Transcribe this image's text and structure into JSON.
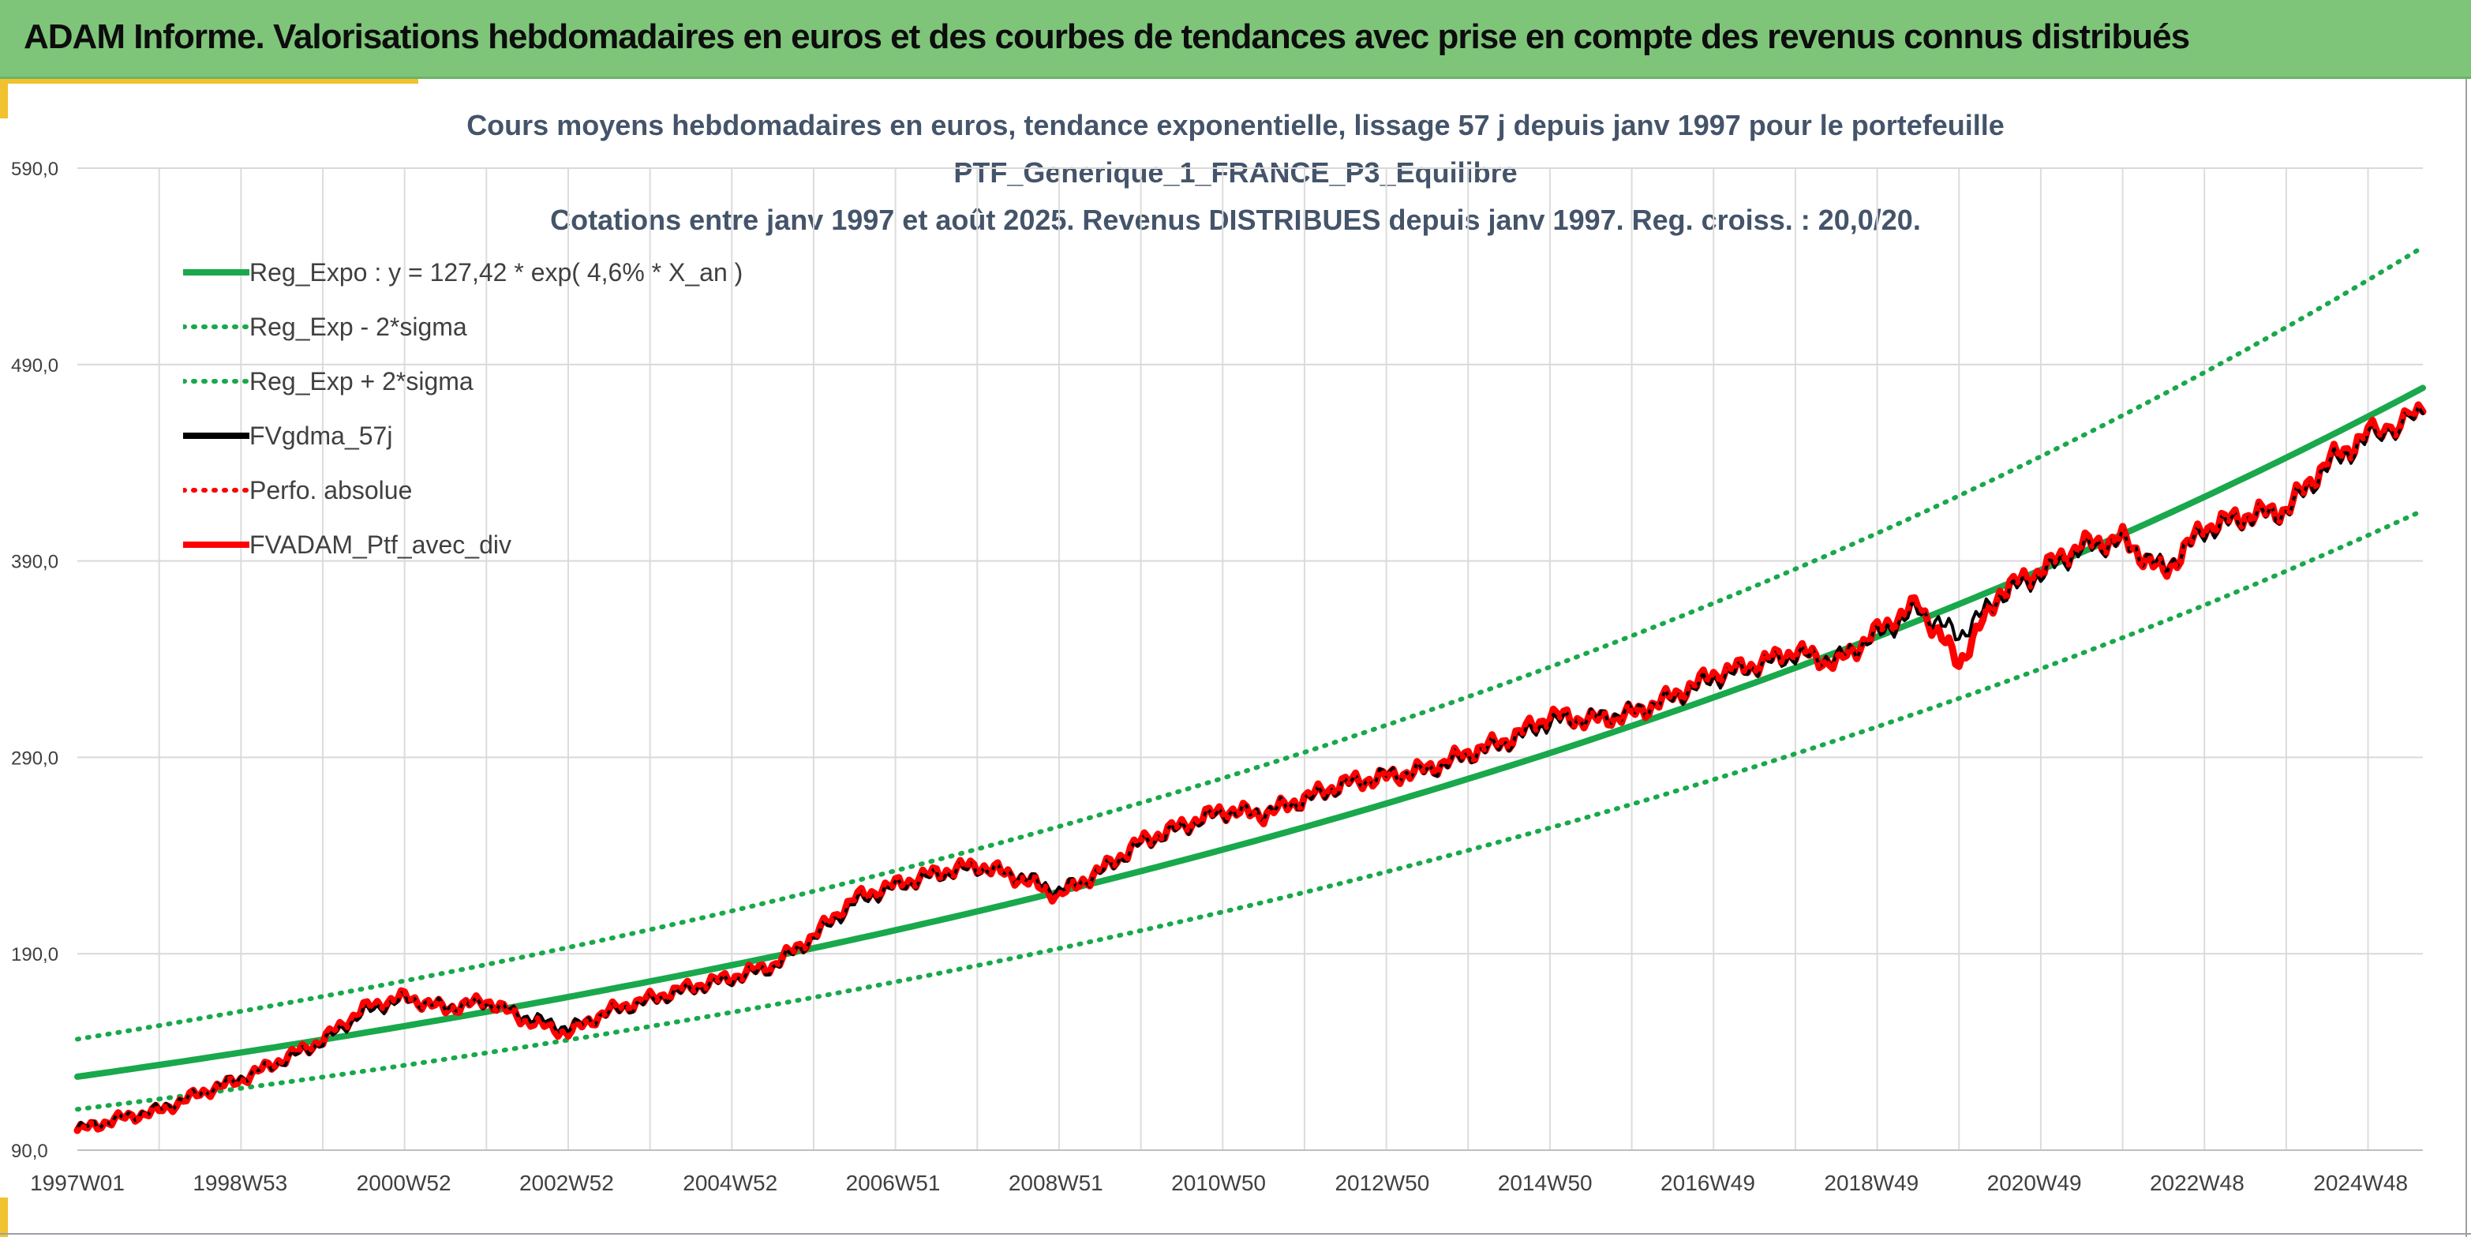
{
  "header": {
    "title": "ADAM Informe. Valorisations hebdomadaires en euros et des courbes de tendances avec prise en compte des revenus connus distribués"
  },
  "colors": {
    "header_bg": "#7ec57a",
    "accent": "#f2c12e",
    "trend_green": "#19a84b",
    "fv_black": "#000000",
    "ptf_red": "#ff0000"
  },
  "chart_data": {
    "type": "line",
    "title_lines": [
      "Cours moyens hebdomadaires en euros, tendance exponentielle, lissage 57 j depuis janv 1997 pour le portefeuille",
      "PTF_Generique_1_FRANCE_P3_Equilibre",
      "Cotations entre janv 1997 et août 2025. Revenus DISTRIBUES depuis janv 1997. Reg. croiss. : 20,0/20."
    ],
    "ylim": [
      90,
      590
    ],
    "yticks": [
      "90,0",
      "190,0",
      "290,0",
      "390,0",
      "490,0",
      "590,0"
    ],
    "xlim": [
      1997.0,
      2025.67
    ],
    "xticks": [
      {
        "label": "1997W01",
        "x": 1997.0
      },
      {
        "label": "1998W53",
        "x": 1998.99
      },
      {
        "label": "2000W52",
        "x": 2000.99
      },
      {
        "label": "2002W52",
        "x": 2002.98
      },
      {
        "label": "2004W52",
        "x": 2004.98
      },
      {
        "label": "2006W51",
        "x": 2006.97
      },
      {
        "label": "2008W51",
        "x": 2008.96
      },
      {
        "label": "2010W50",
        "x": 2010.95
      },
      {
        "label": "2012W50",
        "x": 2012.95
      },
      {
        "label": "2014W50",
        "x": 2014.94
      },
      {
        "label": "2016W49",
        "x": 2016.93
      },
      {
        "label": "2018W49",
        "x": 2018.93
      },
      {
        "label": "2020W49",
        "x": 2020.92
      },
      {
        "label": "2022W48",
        "x": 2022.91
      },
      {
        "label": "2024W48",
        "x": 2024.91
      }
    ],
    "grid": true,
    "legend_position": "top-left",
    "series": [
      {
        "name": "Reg_Expo : y = 127,42 * exp( 4,6% *  X_an )",
        "color": "#19a84b",
        "style": "solid",
        "x": [
          1997,
          1999,
          2001,
          2003,
          2005,
          2007,
          2009,
          2011,
          2013,
          2015,
          2017,
          2019,
          2021,
          2023,
          2025.67
        ],
        "y": [
          127.4,
          139.7,
          153.2,
          168.0,
          184.2,
          202.0,
          221.6,
          243.0,
          266.5,
          292.2,
          320.5,
          351.4,
          385.4,
          422.6,
          478.1
        ]
      },
      {
        "name": "Reg_Exp - 2*sigma",
        "color": "#19a84b",
        "style": "dotted",
        "x": [
          1997,
          1999,
          2001,
          2003,
          2005,
          2007,
          2009,
          2011,
          2013,
          2015,
          2017,
          2019,
          2021,
          2023,
          2025.67
        ],
        "y": [
          110.8,
          121.5,
          133.2,
          146.1,
          160.2,
          175.7,
          192.7,
          211.3,
          231.7,
          254.1,
          278.7,
          305.6,
          335.1,
          367.5,
          415.7
        ]
      },
      {
        "name": "Reg_Exp + 2*sigma",
        "color": "#19a84b",
        "style": "dotted",
        "x": [
          1997,
          1999,
          2001,
          2003,
          2005,
          2007,
          2009,
          2011,
          2013,
          2015,
          2017,
          2019,
          2021,
          2023,
          2025.67
        ],
        "y": [
          146.5,
          160.7,
          176.2,
          193.2,
          211.8,
          232.3,
          254.8,
          279.4,
          306.4,
          336.0,
          368.5,
          404.1,
          443.2,
          486.0,
          549.8
        ]
      },
      {
        "name": "FVgdma_57j",
        "color": "#000000",
        "style": "solid",
        "x": [
          1997.0,
          1997.5,
          1998.0,
          1998.5,
          1999.0,
          1999.5,
          2000.0,
          2000.5,
          2001.0,
          2001.5,
          2002.0,
          2002.5,
          2003.0,
          2003.5,
          2004.0,
          2004.5,
          2005.0,
          2005.5,
          2006.0,
          2006.5,
          2007.0,
          2007.5,
          2008.0,
          2008.5,
          2009.0,
          2009.5,
          2010.0,
          2010.5,
          2011.0,
          2011.5,
          2012.0,
          2012.5,
          2013.0,
          2013.5,
          2014.0,
          2014.5,
          2015.0,
          2015.5,
          2016.0,
          2016.5,
          2017.0,
          2017.5,
          2018.0,
          2018.5,
          2019.0,
          2019.5,
          2020.0,
          2020.5,
          2021.0,
          2021.5,
          2022.0,
          2022.5,
          2023.0,
          2023.5,
          2024.0,
          2024.5,
          2025.0,
          2025.67
        ],
        "y": [
          101,
          106,
          111,
          119,
          127,
          135,
          145,
          160,
          167,
          163,
          165,
          158,
          152,
          160,
          166,
          172,
          177,
          183,
          198,
          216,
          224,
          230,
          234,
          230,
          222,
          231,
          246,
          254,
          262,
          262,
          268,
          276,
          281,
          283,
          291,
          298,
          308,
          310,
          313,
          320,
          330,
          336,
          342,
          340,
          352,
          365,
          352,
          372,
          383,
          396,
          400,
          386,
          405,
          412,
          415,
          438,
          452,
          465
        ]
      },
      {
        "name": "Perfo. absolue",
        "color": "#ff0000",
        "style": "dotted",
        "x": [
          1997.0,
          1997.5,
          1998.0,
          1998.5,
          1999.0,
          1999.5,
          2000.0,
          2000.5,
          2001.0,
          2001.5,
          2002.0,
          2002.5,
          2003.0,
          2003.5,
          2004.0,
          2004.5,
          2005.0,
          2005.5,
          2006.0,
          2006.5,
          2007.0,
          2007.5,
          2008.0,
          2008.5,
          2009.0,
          2009.5,
          2010.0,
          2010.5,
          2011.0,
          2011.5,
          2012.0,
          2012.5,
          2013.0,
          2013.5,
          2014.0,
          2014.5,
          2015.0,
          2015.5,
          2016.0,
          2016.5,
          2017.0,
          2017.5,
          2018.0,
          2018.5,
          2019.0,
          2019.5,
          2020.0,
          2020.5,
          2021.0,
          2021.5,
          2022.0,
          2022.5,
          2023.0,
          2023.5,
          2024.0,
          2024.5,
          2025.0,
          2025.67
        ],
        "y": [
          100,
          106,
          110,
          119,
          126,
          136,
          146,
          162,
          168,
          162,
          166,
          156,
          150,
          161,
          167,
          173,
          178,
          184,
          199,
          218,
          225,
          231,
          235,
          229,
          220,
          232,
          247,
          255,
          263,
          261,
          269,
          277,
          280,
          284,
          292,
          299,
          311,
          309,
          312,
          321,
          332,
          337,
          344,
          338,
          354,
          368,
          338,
          374,
          385,
          398,
          401,
          384,
          407,
          413,
          416,
          440,
          454,
          466
        ]
      },
      {
        "name": "FVADAM_Ptf_avec_div",
        "color": "#ff0000",
        "style": "solid",
        "x": [
          1997.0,
          1997.5,
          1998.0,
          1998.5,
          1999.0,
          1999.5,
          2000.0,
          2000.5,
          2001.0,
          2001.5,
          2002.0,
          2002.5,
          2003.0,
          2003.5,
          2004.0,
          2004.5,
          2005.0,
          2005.5,
          2006.0,
          2006.5,
          2007.0,
          2007.5,
          2008.0,
          2008.5,
          2009.0,
          2009.5,
          2010.0,
          2010.5,
          2011.0,
          2011.5,
          2012.0,
          2012.5,
          2013.0,
          2013.5,
          2014.0,
          2014.5,
          2015.0,
          2015.5,
          2016.0,
          2016.5,
          2017.0,
          2017.5,
          2018.0,
          2018.5,
          2019.0,
          2019.5,
          2020.0,
          2020.5,
          2021.0,
          2021.5,
          2022.0,
          2022.5,
          2023.0,
          2023.5,
          2024.0,
          2024.5,
          2025.0,
          2025.67
        ],
        "y": [
          100,
          106,
          110,
          119,
          126,
          136,
          146,
          162,
          168,
          162,
          166,
          156,
          150,
          161,
          167,
          173,
          178,
          184,
          199,
          218,
          225,
          231,
          235,
          229,
          220,
          232,
          247,
          255,
          263,
          261,
          269,
          277,
          280,
          284,
          292,
          299,
          311,
          309,
          312,
          321,
          332,
          337,
          344,
          338,
          354,
          368,
          338,
          374,
          385,
          398,
          401,
          384,
          407,
          413,
          416,
          440,
          454,
          466
        ]
      }
    ]
  }
}
